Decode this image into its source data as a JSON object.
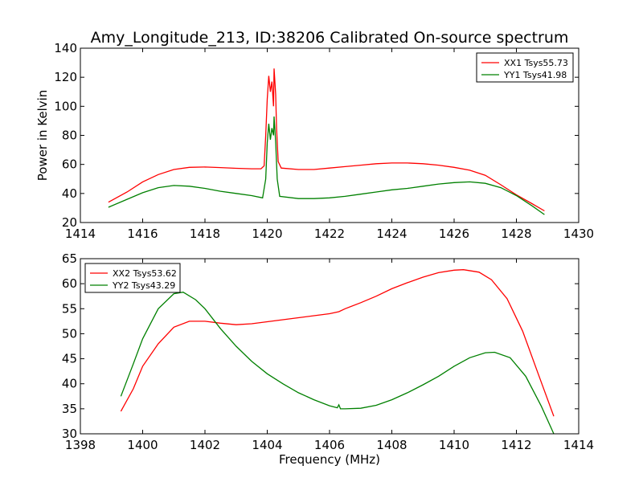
{
  "title": "Amy_Longitude_213, ID:38206 Calibrated On-source spectrum",
  "chart_data": [
    {
      "type": "line",
      "ylabel": "Power in Kelvin",
      "xlabel": "",
      "xlim": [
        1414,
        1430
      ],
      "ylim": [
        20,
        140
      ],
      "xticks": [
        "1414",
        "1416",
        "1418",
        "1420",
        "1422",
        "1424",
        "1426",
        "1428",
        "1430"
      ],
      "yticks": [
        "20",
        "40",
        "60",
        "80",
        "100",
        "120",
        "140"
      ],
      "legend_position": "top-right",
      "series": [
        {
          "name": "XX1 Tsys55.73",
          "color": "#ff0000",
          "points": [
            [
              1414.9,
              34
            ],
            [
              1415.5,
              41
            ],
            [
              1416,
              48
            ],
            [
              1416.5,
              53
            ],
            [
              1417,
              56.5
            ],
            [
              1417.5,
              58
            ],
            [
              1418,
              58.2
            ],
            [
              1418.5,
              57.8
            ],
            [
              1419,
              57.3
            ],
            [
              1419.5,
              57
            ],
            [
              1419.8,
              57
            ],
            [
              1419.9,
              59
            ],
            [
              1419.95,
              80
            ],
            [
              1420.0,
              105
            ],
            [
              1420.05,
              121
            ],
            [
              1420.1,
              110
            ],
            [
              1420.15,
              117
            ],
            [
              1420.2,
              100
            ],
            [
              1420.22,
              126
            ],
            [
              1420.27,
              108
            ],
            [
              1420.3,
              85
            ],
            [
              1420.35,
              62
            ],
            [
              1420.45,
              57.5
            ],
            [
              1421,
              56.5
            ],
            [
              1421.5,
              56.5
            ],
            [
              1422,
              57.5
            ],
            [
              1422.5,
              58.5
            ],
            [
              1423,
              59.5
            ],
            [
              1423.5,
              60.5
            ],
            [
              1424,
              61
            ],
            [
              1424.5,
              61
            ],
            [
              1425,
              60.5
            ],
            [
              1425.5,
              59.5
            ],
            [
              1426,
              58
            ],
            [
              1426.5,
              56
            ],
            [
              1427,
              52.5
            ],
            [
              1427.5,
              46
            ],
            [
              1428,
              39
            ],
            [
              1428.5,
              33
            ],
            [
              1428.9,
              28
            ]
          ]
        },
        {
          "name": "YY1 Tsys41.98",
          "color": "#008000",
          "points": [
            [
              1414.9,
              30.5
            ],
            [
              1415.5,
              36
            ],
            [
              1416,
              40.5
            ],
            [
              1416.5,
              44
            ],
            [
              1417,
              45.5
            ],
            [
              1417.5,
              45
            ],
            [
              1418,
              43.5
            ],
            [
              1418.5,
              41.5
            ],
            [
              1419,
              40
            ],
            [
              1419.5,
              38.5
            ],
            [
              1419.85,
              37
            ],
            [
              1419.95,
              50
            ],
            [
              1420.0,
              75
            ],
            [
              1420.05,
              88
            ],
            [
              1420.1,
              77
            ],
            [
              1420.15,
              85
            ],
            [
              1420.2,
              80
            ],
            [
              1420.22,
              93
            ],
            [
              1420.27,
              75
            ],
            [
              1420.32,
              50
            ],
            [
              1420.4,
              38
            ],
            [
              1421,
              36.5
            ],
            [
              1421.5,
              36.5
            ],
            [
              1422,
              37
            ],
            [
              1422.5,
              38
            ],
            [
              1423,
              39.5
            ],
            [
              1423.5,
              41
            ],
            [
              1424,
              42.5
            ],
            [
              1424.5,
              43.5
            ],
            [
              1425,
              45
            ],
            [
              1425.5,
              46.5
            ],
            [
              1426,
              47.5
            ],
            [
              1426.5,
              48
            ],
            [
              1427,
              47
            ],
            [
              1427.5,
              44
            ],
            [
              1428,
              38.5
            ],
            [
              1428.5,
              31.5
            ],
            [
              1428.9,
              25.5
            ]
          ]
        }
      ]
    },
    {
      "type": "line",
      "xlabel": "Frequency (MHz)",
      "ylabel": "",
      "xlim": [
        1398,
        1414
      ],
      "ylim": [
        30,
        65
      ],
      "xticks": [
        "1398",
        "1400",
        "1402",
        "1404",
        "1406",
        "1408",
        "1410",
        "1412",
        "1414"
      ],
      "yticks": [
        "30",
        "35",
        "40",
        "45",
        "50",
        "55",
        "60",
        "65"
      ],
      "legend_position": "top-left",
      "series": [
        {
          "name": "XX2 Tsys53.62",
          "color": "#ff0000",
          "points": [
            [
              1399.3,
              34.5
            ],
            [
              1399.7,
              39
            ],
            [
              1400,
              43.5
            ],
            [
              1400.5,
              48
            ],
            [
              1401,
              51.3
            ],
            [
              1401.5,
              52.5
            ],
            [
              1402,
              52.5
            ],
            [
              1402.5,
              52.1
            ],
            [
              1403,
              51.8
            ],
            [
              1403.5,
              52
            ],
            [
              1404,
              52.4
            ],
            [
              1404.5,
              52.8
            ],
            [
              1405,
              53.2
            ],
            [
              1405.5,
              53.6
            ],
            [
              1406,
              54
            ],
            [
              1406.3,
              54.4
            ],
            [
              1406.5,
              55
            ],
            [
              1407,
              56.2
            ],
            [
              1407.5,
              57.5
            ],
            [
              1408,
              59
            ],
            [
              1408.5,
              60.2
            ],
            [
              1409,
              61.3
            ],
            [
              1409.5,
              62.2
            ],
            [
              1410,
              62.7
            ],
            [
              1410.3,
              62.8
            ],
            [
              1410.8,
              62.3
            ],
            [
              1411.2,
              60.8
            ],
            [
              1411.7,
              57
            ],
            [
              1412.2,
              50.5
            ],
            [
              1412.7,
              42
            ],
            [
              1413.2,
              33.5
            ]
          ]
        },
        {
          "name": "YY2 Tsys43.29",
          "color": "#008000",
          "points": [
            [
              1399.3,
              37.5
            ],
            [
              1399.7,
              44
            ],
            [
              1400,
              49
            ],
            [
              1400.5,
              55
            ],
            [
              1401,
              58
            ],
            [
              1401.3,
              58.3
            ],
            [
              1401.7,
              56.8
            ],
            [
              1402,
              55
            ],
            [
              1402.5,
              51
            ],
            [
              1403,
              47.5
            ],
            [
              1403.5,
              44.5
            ],
            [
              1404,
              42
            ],
            [
              1404.5,
              40
            ],
            [
              1405,
              38.2
            ],
            [
              1405.5,
              36.8
            ],
            [
              1406,
              35.6
            ],
            [
              1406.25,
              35.2
            ],
            [
              1406.3,
              35.8
            ],
            [
              1406.35,
              35
            ],
            [
              1406.5,
              35
            ],
            [
              1407,
              35.1
            ],
            [
              1407.5,
              35.7
            ],
            [
              1408,
              36.8
            ],
            [
              1408.5,
              38.2
            ],
            [
              1409,
              39.8
            ],
            [
              1409.5,
              41.5
            ],
            [
              1410,
              43.5
            ],
            [
              1410.5,
              45.2
            ],
            [
              1411,
              46.2
            ],
            [
              1411.3,
              46.3
            ],
            [
              1411.8,
              45.2
            ],
            [
              1412.3,
              41.5
            ],
            [
              1412.8,
              35.5
            ],
            [
              1413.2,
              30
            ]
          ]
        }
      ]
    }
  ]
}
